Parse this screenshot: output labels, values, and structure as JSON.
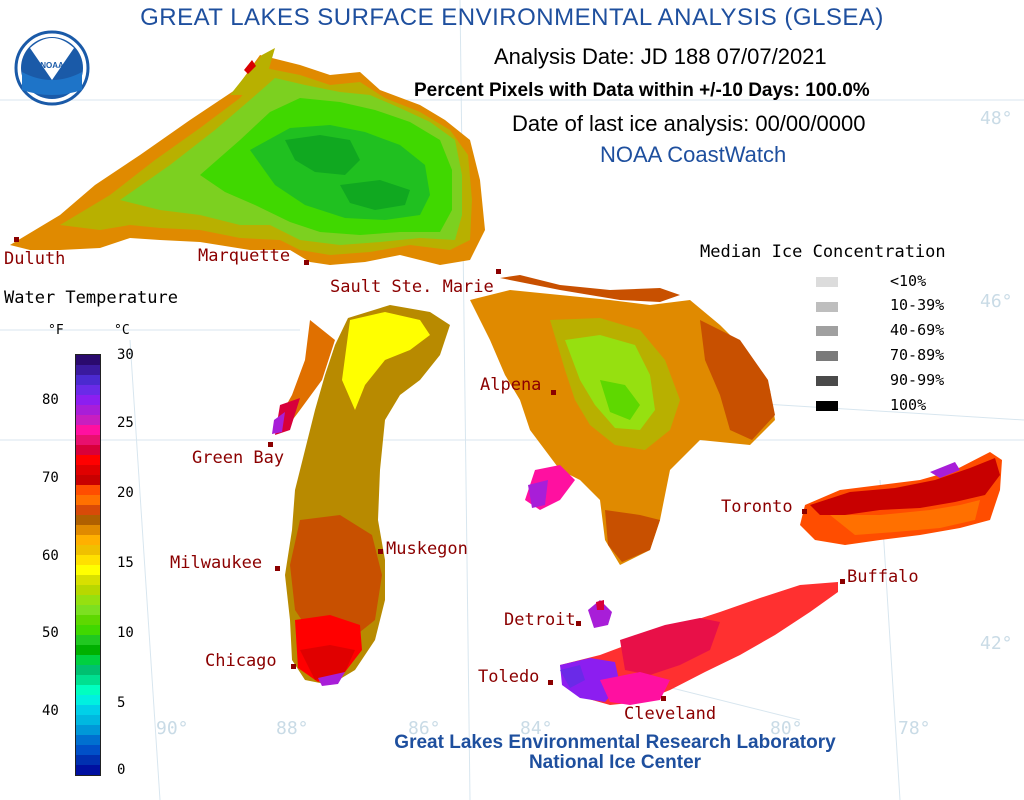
{
  "title": "GREAT LAKES SURFACE ENVIRONMENTAL ANALYSIS (GLSEA)",
  "logo_text": "NOAA",
  "analysis_date": "Analysis Date:  JD 188 07/07/2021",
  "percent_pixels": "Percent Pixels with Data within +/-10 Days: 100.0%",
  "last_ice": "Date of last ice analysis: 00/00/0000",
  "coastwatch": "NOAA CoastWatch",
  "temp_legend": {
    "title": "Water Temperature",
    "unit_f": "°F",
    "unit_c": "°C",
    "f_ticks": [
      "80",
      "70",
      "60",
      "50",
      "40"
    ],
    "c_ticks": [
      "30",
      "25",
      "20",
      "15",
      "10",
      "5",
      "0"
    ],
    "colors": [
      "#2a0a6e",
      "#3a1a9e",
      "#4b2ad0",
      "#6a2ae8",
      "#8c1ef0",
      "#a81ed8",
      "#c81ec0",
      "#ff10a0",
      "#e8106e",
      "#d8003a",
      "#ff0000",
      "#e00000",
      "#c80000",
      "#ff4d00",
      "#ff7000",
      "#d84a08",
      "#b06000",
      "#e08a00",
      "#ffb000",
      "#f0c000",
      "#ffe000",
      "#ffff00",
      "#d8e000",
      "#b8d800",
      "#96e010",
      "#7ce020",
      "#5ed800",
      "#40d800",
      "#20c820",
      "#00b000",
      "#00d040",
      "#00c070",
      "#00e090",
      "#00ffc0",
      "#00f0e0",
      "#00d0e8",
      "#00b8e0",
      "#0098d8",
      "#0070d0",
      "#0050c8",
      "#0030b0",
      "#0010a0"
    ]
  },
  "ice_legend": {
    "title": "Median Ice Concentration",
    "items": [
      {
        "label": "<10%",
        "color": "#dcdcdc"
      },
      {
        "label": "10-39%",
        "color": "#bebebe"
      },
      {
        "label": "40-69%",
        "color": "#a0a0a0"
      },
      {
        "label": "70-89%",
        "color": "#7a7a7a"
      },
      {
        "label": "90-99%",
        "color": "#4a4a4a"
      },
      {
        "label": "100%",
        "color": "#000000"
      }
    ]
  },
  "cities": [
    "Duluth",
    "Marquette",
    "Sault Ste. Marie",
    "Green Bay",
    "Alpena",
    "Milwaukee",
    "Muskegon",
    "Chicago",
    "Toronto",
    "Buffalo",
    "Detroit",
    "Toledo",
    "Cleveland"
  ],
  "grid_labels": [
    "48°",
    "46°",
    "42°",
    "90°",
    "88°",
    "86°",
    "84°",
    "80°",
    "78°"
  ],
  "footer": {
    "line1": "Great Lakes Environmental Research Laboratory",
    "line2": "National Ice Center"
  }
}
